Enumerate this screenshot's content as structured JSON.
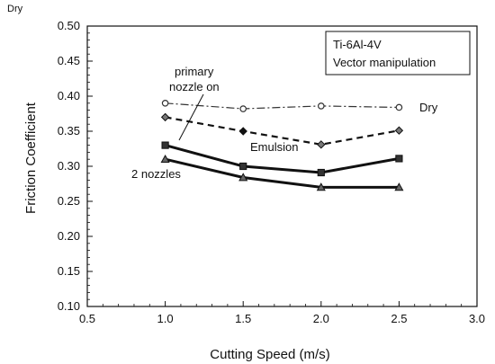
{
  "corner_label": "Dry",
  "chart_data": {
    "type": "line",
    "xlabel": "Cutting Speed (m/s)",
    "ylabel": "Friction Coefficient",
    "xlim": [
      0.5,
      3.0
    ],
    "ylim": [
      0.1,
      0.5
    ],
    "xticks": [
      "0.5",
      "1.0",
      "1.5",
      "2.0",
      "2.5",
      "3.0"
    ],
    "yticks": [
      "0.10",
      "0.15",
      "0.20",
      "0.25",
      "0.30",
      "0.35",
      "0.40",
      "0.45",
      "0.50"
    ],
    "legend_box": [
      "Ti-6Al-4V",
      "Vector manipulation"
    ],
    "legend_placement": "top-right",
    "grid": false,
    "x": [
      1.0,
      1.5,
      2.0,
      2.5
    ],
    "series": [
      {
        "name": "Dry",
        "values": [
          0.39,
          0.382,
          0.386,
          0.384
        ],
        "marker": "circle",
        "style": "dashdot",
        "color": "#333333"
      },
      {
        "name": "Emulsion",
        "values": [
          0.37,
          0.35,
          0.331,
          0.351
        ],
        "marker": "diamond",
        "style": "dashed",
        "color": "#111111"
      },
      {
        "name": "primary nozzle on",
        "values": [
          0.33,
          0.3,
          0.291,
          0.311
        ],
        "marker": "square",
        "style": "solid-thick",
        "color": "#111111"
      },
      {
        "name": "2 nozzles",
        "values": [
          0.31,
          0.284,
          0.27,
          0.27
        ],
        "marker": "triangle",
        "style": "solid-thick",
        "color": "#111111"
      }
    ],
    "annotations": {
      "dry": "Dry",
      "emulsion": "Emulsion",
      "primary_line1": "primary",
      "primary_line2": "nozzle on",
      "two_nozzles": "2 nozzles"
    }
  }
}
